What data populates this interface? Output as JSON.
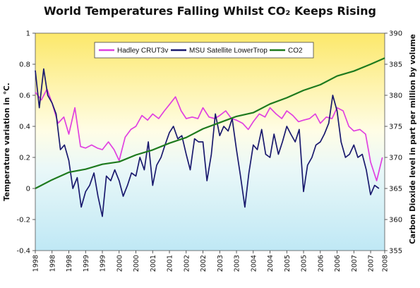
{
  "chart_data": {
    "type": "line",
    "title": "World Temperatures Falling Whilst CO₂ Keeps Rising",
    "ylabel": "Temperature variation in °C.",
    "y2label": "Carbon Dioxide level in part per million by volume",
    "ylim": [
      -0.4,
      1
    ],
    "y2lim": [
      355,
      390
    ],
    "yticks": [
      "-0.4",
      "-0.2",
      "0",
      "0.2",
      "0.4",
      "0.6",
      "0.8",
      "1"
    ],
    "y2ticks": [
      "355",
      "360",
      "365",
      "370",
      "375",
      "380",
      "385",
      "390"
    ],
    "xlim": [
      1998.0,
      2008.42
    ],
    "xticks": [
      {
        "x": 1998.0,
        "label": "1998"
      },
      {
        "x": 1998.5,
        "label": "1998"
      },
      {
        "x": 1999.0,
        "label": "1998"
      },
      {
        "x": 1999.5,
        "label": "1999"
      },
      {
        "x": 2000.0,
        "label": "1999"
      },
      {
        "x": 2000.5,
        "label": "2000"
      },
      {
        "x": 2001.0,
        "label": "2000"
      },
      {
        "x": 2001.5,
        "label": "2001"
      },
      {
        "x": 2002.0,
        "label": "2001"
      },
      {
        "x": 2002.5,
        "label": "2002"
      },
      {
        "x": 2003.0,
        "label": "2002"
      },
      {
        "x": 2003.5,
        "label": "2003"
      },
      {
        "x": 2004.0,
        "label": "2003"
      },
      {
        "x": 2004.5,
        "label": "2004"
      },
      {
        "x": 2005.0,
        "label": "2004"
      },
      {
        "x": 2005.5,
        "label": "2005"
      },
      {
        "x": 2006.0,
        "label": "2005"
      },
      {
        "x": 2006.5,
        "label": "2006"
      },
      {
        "x": 2007.0,
        "label": "2006"
      },
      {
        "x": 2007.5,
        "label": "2007"
      },
      {
        "x": 2008.0,
        "label": "2007"
      },
      {
        "x": 2008.42,
        "label": "2008"
      }
    ],
    "series": [
      {
        "name": "Hadley CRUT3v",
        "axis": "left",
        "color": "#e040e0",
        "x": [
          1998.0,
          1998.18,
          1998.35,
          1998.5,
          1998.68,
          1998.85,
          1999.0,
          1999.18,
          1999.35,
          1999.5,
          1999.68,
          1999.85,
          2000.0,
          2000.18,
          2000.35,
          2000.5,
          2000.68,
          2000.85,
          2001.0,
          2001.18,
          2001.35,
          2001.5,
          2001.68,
          2001.85,
          2002.0,
          2002.18,
          2002.35,
          2002.5,
          2002.68,
          2002.85,
          2003.0,
          2003.18,
          2003.35,
          2003.5,
          2003.68,
          2003.85,
          2004.0,
          2004.18,
          2004.35,
          2004.5,
          2004.68,
          2004.85,
          2005.0,
          2005.18,
          2005.35,
          2005.5,
          2005.68,
          2005.85,
          2006.0,
          2006.18,
          2006.35,
          2006.5,
          2006.68,
          2006.85,
          2007.0,
          2007.18,
          2007.35,
          2007.5,
          2007.68,
          2007.85,
          2008.0,
          2008.18,
          2008.35
        ],
        "values": [
          0.62,
          0.57,
          0.64,
          0.55,
          0.42,
          0.46,
          0.35,
          0.52,
          0.27,
          0.26,
          0.28,
          0.26,
          0.25,
          0.3,
          0.25,
          0.18,
          0.33,
          0.38,
          0.4,
          0.47,
          0.44,
          0.48,
          0.45,
          0.5,
          0.54,
          0.59,
          0.5,
          0.45,
          0.46,
          0.45,
          0.52,
          0.46,
          0.45,
          0.47,
          0.5,
          0.45,
          0.44,
          0.42,
          0.38,
          0.43,
          0.48,
          0.46,
          0.52,
          0.48,
          0.45,
          0.5,
          0.47,
          0.43,
          0.44,
          0.45,
          0.48,
          0.42,
          0.46,
          0.45,
          0.52,
          0.5,
          0.4,
          0.37,
          0.38,
          0.35,
          0.17,
          0.05,
          0.2
        ]
      },
      {
        "name": "MSU Satellite LowerTrop",
        "axis": "left",
        "color": "#1a1a6e",
        "x": [
          1998.0,
          1998.12,
          1998.25,
          1998.37,
          1998.5,
          1998.62,
          1998.75,
          1998.87,
          1999.0,
          1999.12,
          1999.25,
          1999.37,
          1999.5,
          1999.62,
          1999.75,
          1999.87,
          2000.0,
          2000.12,
          2000.25,
          2000.37,
          2000.5,
          2000.62,
          2000.75,
          2000.87,
          2001.0,
          2001.12,
          2001.25,
          2001.37,
          2001.5,
          2001.62,
          2001.75,
          2001.87,
          2002.0,
          2002.12,
          2002.25,
          2002.37,
          2002.5,
          2002.62,
          2002.75,
          2002.87,
          2003.0,
          2003.12,
          2003.25,
          2003.37,
          2003.5,
          2003.62,
          2003.75,
          2003.87,
          2004.0,
          2004.12,
          2004.25,
          2004.37,
          2004.5,
          2004.62,
          2004.75,
          2004.87,
          2005.0,
          2005.12,
          2005.25,
          2005.37,
          2005.5,
          2005.62,
          2005.75,
          2005.87,
          2006.0,
          2006.12,
          2006.25,
          2006.37,
          2006.5,
          2006.62,
          2006.75,
          2006.87,
          2007.0,
          2007.12,
          2007.25,
          2007.37,
          2007.5,
          2007.62,
          2007.75,
          2007.87,
          2008.0,
          2008.12,
          2008.25
        ],
        "values": [
          0.76,
          0.52,
          0.77,
          0.6,
          0.55,
          0.48,
          0.25,
          0.28,
          0.18,
          0.0,
          0.07,
          -0.12,
          -0.02,
          0.02,
          0.1,
          -0.05,
          -0.18,
          0.08,
          0.05,
          0.12,
          0.05,
          -0.05,
          0.02,
          0.1,
          0.08,
          0.2,
          0.12,
          0.3,
          0.02,
          0.15,
          0.2,
          0.28,
          0.36,
          0.4,
          0.32,
          0.34,
          0.22,
          0.12,
          0.32,
          0.3,
          0.3,
          0.05,
          0.22,
          0.48,
          0.34,
          0.4,
          0.37,
          0.45,
          0.25,
          0.08,
          -0.12,
          0.1,
          0.28,
          0.25,
          0.38,
          0.22,
          0.2,
          0.35,
          0.22,
          0.3,
          0.4,
          0.35,
          0.3,
          0.38,
          -0.02,
          0.15,
          0.2,
          0.28,
          0.3,
          0.35,
          0.42,
          0.6,
          0.5,
          0.3,
          0.2,
          0.22,
          0.28,
          0.2,
          0.22,
          0.12,
          -0.04,
          0.02,
          0.0
        ]
      },
      {
        "name": "CO2",
        "axis": "right",
        "color": "#1e7a1e",
        "x": [
          1998.0,
          1998.5,
          1999.0,
          1999.5,
          2000.0,
          2000.5,
          2001.0,
          2001.5,
          2002.0,
          2002.5,
          2003.0,
          2003.5,
          2004.0,
          2004.5,
          2005.0,
          2005.5,
          2006.0,
          2006.5,
          2007.0,
          2007.5,
          2008.0,
          2008.42
        ],
        "values": [
          365.0,
          366.4,
          367.6,
          368.1,
          368.9,
          369.3,
          370.4,
          371.2,
          372.3,
          373.2,
          374.6,
          375.6,
          376.6,
          377.2,
          378.6,
          379.6,
          380.8,
          381.7,
          383.1,
          383.9,
          385.0,
          386.0
        ]
      }
    ],
    "legend": {
      "position": "top-center"
    }
  }
}
